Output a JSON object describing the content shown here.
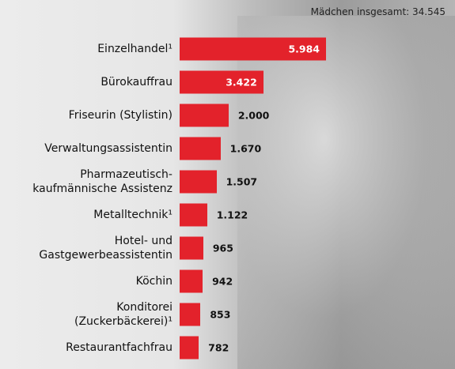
{
  "chart_data": {
    "type": "bar",
    "orientation": "horizontal",
    "subtitle": "Mädchen insgesamt: 34.545",
    "categories": [
      "Einzelhandel¹",
      "Bürokauffrau",
      "Friseurin (Stylistin)",
      "Verwaltungsassistentin",
      "Pharmazeutisch-\nkaufmännische Assistenz",
      "Metalltechnik¹",
      "Hotel- und\nGastgewerbeassistentin",
      "Köchin",
      "Konditorei\n(Zuckerbäckerei)¹",
      "Restaurantfachfrau"
    ],
    "values": [
      5984,
      3422,
      2000,
      1670,
      1507,
      1122,
      965,
      942,
      853,
      782
    ],
    "value_labels": [
      "5.984",
      "3.422",
      "2.000",
      "1.670",
      "1.507",
      "1.122",
      "965",
      "942",
      "853",
      "782"
    ],
    "color": "#e3222b"
  }
}
